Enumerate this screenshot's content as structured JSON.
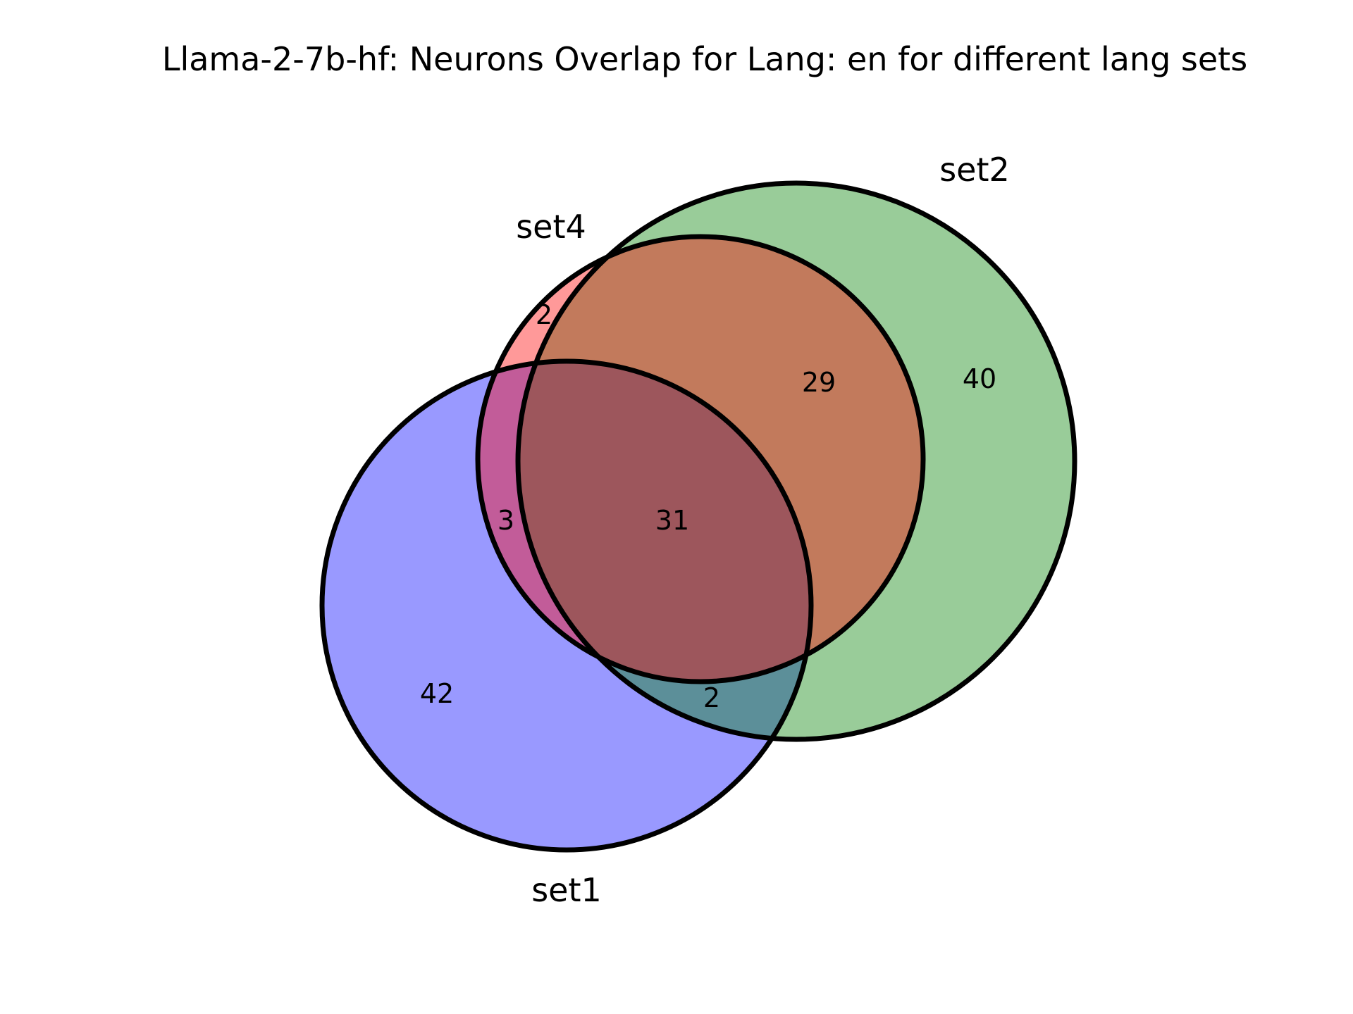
{
  "chart_data": {
    "type": "venn",
    "title": "Llama-2-7b-hf: Neurons Overlap for Lang: en for different lang sets",
    "sets": [
      {
        "id": "set1",
        "label": "set1",
        "color": "#0000ff"
      },
      {
        "id": "set2",
        "label": "set2",
        "color": "#008000"
      },
      {
        "id": "set4",
        "label": "set4",
        "color": "#ff0000"
      }
    ],
    "regions": [
      {
        "id": "set4-only",
        "sets": [
          "set4"
        ],
        "value": "2"
      },
      {
        "id": "set2-set4",
        "sets": [
          "set2",
          "set4"
        ],
        "value": "29"
      },
      {
        "id": "set2-only",
        "sets": [
          "set2"
        ],
        "value": "40"
      },
      {
        "id": "set1-set4",
        "sets": [
          "set1",
          "set4"
        ],
        "value": "3"
      },
      {
        "id": "set1-set2-set4",
        "sets": [
          "set1",
          "set2",
          "set4"
        ],
        "value": "31"
      },
      {
        "id": "set1-only",
        "sets": [
          "set1"
        ],
        "value": "42"
      },
      {
        "id": "set1-set2",
        "sets": [
          "set1",
          "set2"
        ],
        "value": "2"
      }
    ]
  }
}
